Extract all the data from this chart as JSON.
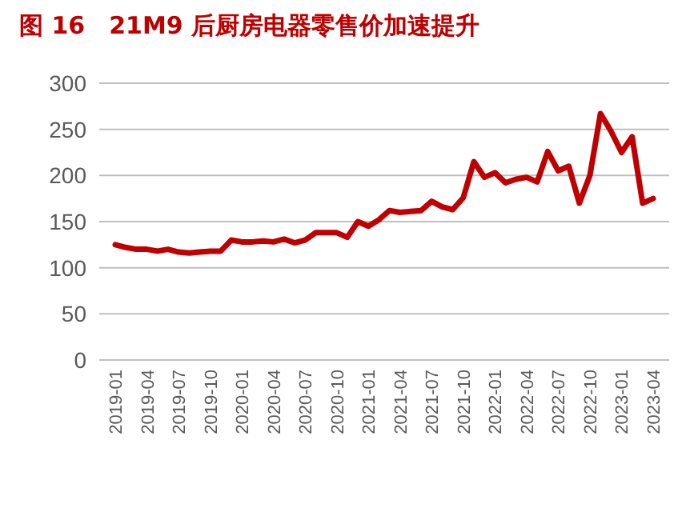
{
  "chart_data": {
    "type": "line",
    "title": "图 16　21M9 后厨房电器零售价加速提升",
    "categories": [
      "2019-01",
      null,
      null,
      "2019-04",
      null,
      null,
      "2019-07",
      null,
      null,
      "2019-10",
      null,
      null,
      "2020-01",
      null,
      null,
      "2020-04",
      null,
      null,
      "2020-07",
      null,
      null,
      "2020-10",
      null,
      null,
      "2021-01",
      null,
      null,
      "2021-04",
      null,
      null,
      "2021-07",
      null,
      null,
      "2021-10",
      null,
      null,
      "2022-01",
      null,
      null,
      "2022-04",
      null,
      null,
      "2022-07",
      null,
      null,
      "2022-10",
      null,
      null,
      "2023-01",
      null,
      null,
      "2023-04"
    ],
    "series": [
      {
        "color": "#c00000",
        "values": [
          125,
          122,
          120,
          120,
          118,
          120,
          117,
          116,
          117,
          118,
          118,
          130,
          128,
          128,
          129,
          128,
          131,
          127,
          130,
          138,
          138,
          138,
          133,
          150,
          145,
          152,
          162,
          160,
          161,
          162,
          172,
          166,
          163,
          176,
          215,
          198,
          203,
          192,
          196,
          198,
          193,
          226,
          205,
          210,
          170,
          200,
          267,
          248,
          225,
          242,
          170,
          175
        ]
      }
    ],
    "ylim": [
      0,
      300
    ],
    "yticks": [
      0,
      50,
      100,
      150,
      200,
      250,
      300
    ],
    "grid": "y",
    "marker": "none",
    "line_style": "solid"
  }
}
